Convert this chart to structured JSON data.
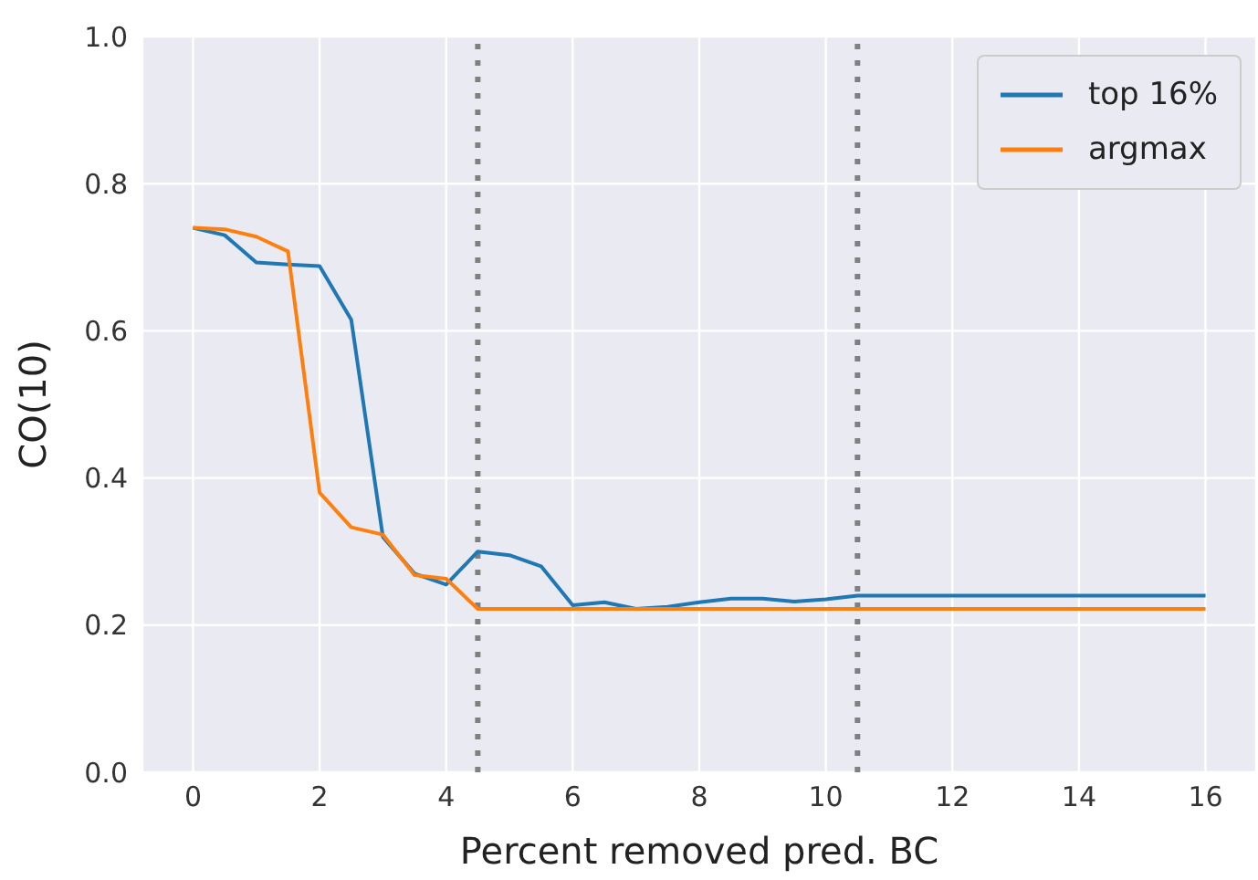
{
  "chart_data": {
    "type": "line",
    "xlabel": "Percent removed pred. BC",
    "ylabel": "CO(10)",
    "x": [
      0,
      0.5,
      1,
      1.5,
      2,
      2.5,
      3,
      3.5,
      4,
      4.5,
      5,
      5.5,
      6,
      6.5,
      7,
      7.5,
      8,
      8.5,
      9,
      9.5,
      10,
      10.5,
      11,
      11.5,
      12,
      12.5,
      13,
      13.5,
      14,
      14.5,
      15,
      15.5,
      16
    ],
    "series": [
      {
        "name": "top 16%",
        "color": "#1f77b4",
        "values": [
          0.74,
          0.73,
          0.693,
          0.69,
          0.688,
          0.615,
          0.32,
          0.27,
          0.255,
          0.3,
          0.295,
          0.28,
          0.227,
          0.231,
          0.222,
          0.225,
          0.231,
          0.236,
          0.236,
          0.232,
          0.235,
          0.24,
          0.24,
          0.24,
          0.24,
          0.24,
          0.24,
          0.24,
          0.24,
          0.24,
          0.24,
          0.24,
          0.24
        ]
      },
      {
        "name": "argmax",
        "color": "#ff7f0e",
        "values": [
          0.74,
          0.738,
          0.728,
          0.708,
          0.38,
          0.333,
          0.323,
          0.268,
          0.263,
          0.222,
          0.222,
          0.222,
          0.222,
          0.222,
          0.222,
          0.222,
          0.222,
          0.222,
          0.222,
          0.222,
          0.222,
          0.222,
          0.222,
          0.222,
          0.222,
          0.222,
          0.222,
          0.222,
          0.222,
          0.222,
          0.222,
          0.222,
          0.222
        ]
      }
    ],
    "xlim": [
      -0.8,
      16.8
    ],
    "xticks": [
      0,
      2,
      4,
      6,
      8,
      10,
      12,
      14,
      16
    ],
    "ylim": [
      0,
      1
    ],
    "yticks": [
      {
        "value": 0,
        "label": "0.0"
      },
      {
        "value": 0.2,
        "label": "0.2"
      },
      {
        "value": 0.4,
        "label": "0.4"
      },
      {
        "value": 0.6,
        "label": "0.6"
      },
      {
        "value": 0.8,
        "label": "0.8"
      },
      {
        "value": 1,
        "label": "1.0"
      }
    ],
    "ref_lines": [
      {
        "axis": "x",
        "value": 4.5,
        "color": "#808080",
        "line_style": "dotted"
      },
      {
        "axis": "x",
        "value": 10.5,
        "color": "#808080",
        "line_style": "dotted"
      }
    ],
    "grid": true,
    "legend": "top right",
    "line_style": "solid",
    "marker": "none"
  }
}
